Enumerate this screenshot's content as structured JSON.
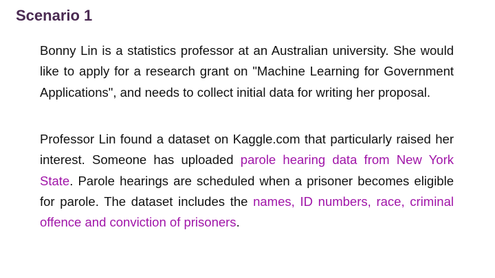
{
  "title": "Scenario 1",
  "paragraph1": "Bonny Lin is a statistics professor at an Australian university. She would like to apply for a research grant on \"Machine Learning for Government Applications\", and needs to collect initial data for writing her proposal.",
  "paragraph2": {
    "part1": "Professor Lin found a dataset on Kaggle.com that particularly raised her interest. Someone has uploaded ",
    "highlight1": "parole hearing data from New York State",
    "part2": ". Parole hearings are scheduled when a prisoner becomes eligible for parole. The dataset includes the ",
    "highlight2": "names, ID numbers, race, criminal offence and conviction of prisoners",
    "part3": "."
  },
  "colors": {
    "title": "#4a2a52",
    "text": "#111111",
    "highlight": "#a015a8"
  }
}
